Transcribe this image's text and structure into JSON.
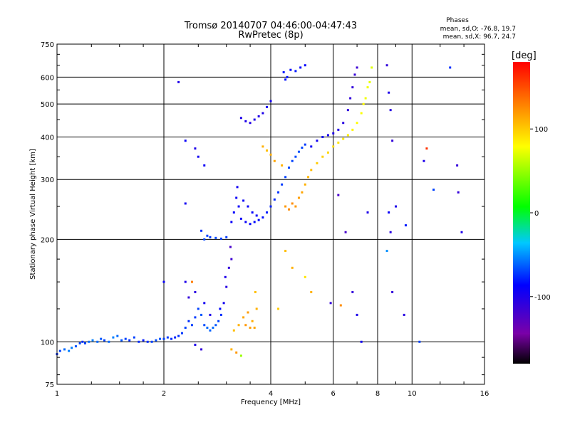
{
  "chart_data": {
    "type": "scatter",
    "title": "Tromsø 20140707 04:46:00-04:47:43",
    "subtitle": "RwPretec (8p)",
    "xlabel": "Frequency [MHz]",
    "ylabel": "Stationary phase Virtual Height [km]",
    "x_scale": "log",
    "y_scale": "log",
    "xlim": [
      1,
      16
    ],
    "ylim": [
      75,
      750
    ],
    "x_ticks": [
      1,
      2,
      4,
      6,
      8,
      10,
      16
    ],
    "y_ticks": [
      75,
      100,
      200,
      300,
      400,
      500,
      600,
      750
    ],
    "grid": true,
    "phases_box": {
      "heading": "Phases",
      "line_o": "mean, sd,O: -76.8, 19.7",
      "line_x": "mean, sd,X:  96.7, 24.7"
    },
    "colorbar": {
      "label": "[deg]",
      "range": [
        -180,
        180
      ],
      "ticks": [
        100,
        0,
        -100
      ]
    },
    "series": [
      {
        "points": [
          [
            1.0,
            92,
            -75
          ],
          [
            1.02,
            94,
            -70
          ],
          [
            1.05,
            95,
            -60
          ],
          [
            1.08,
            94,
            -55
          ],
          [
            1.1,
            96,
            -55
          ],
          [
            1.13,
            97,
            -65
          ],
          [
            1.16,
            99,
            -70
          ],
          [
            1.18,
            100,
            -75
          ],
          [
            1.2,
            99,
            -70
          ],
          [
            1.23,
            100,
            -60
          ],
          [
            1.26,
            101,
            -55
          ],
          [
            1.3,
            100,
            -60
          ],
          [
            1.33,
            102,
            -65
          ],
          [
            1.36,
            101,
            -70
          ],
          [
            1.4,
            100,
            -60
          ],
          [
            1.44,
            103,
            -55
          ],
          [
            1.48,
            104,
            -60
          ],
          [
            1.52,
            101,
            -65
          ],
          [
            1.56,
            102,
            -70
          ],
          [
            1.6,
            101,
            -75
          ],
          [
            1.65,
            103,
            -70
          ],
          [
            1.7,
            100,
            -75
          ],
          [
            1.75,
            101,
            -80
          ],
          [
            1.8,
            100,
            -75
          ],
          [
            1.85,
            100,
            -70
          ],
          [
            1.9,
            101,
            -68
          ],
          [
            1.95,
            102,
            -65
          ],
          [
            2.0,
            102,
            -70
          ],
          [
            2.05,
            103,
            -72
          ],
          [
            2.1,
            102,
            -75
          ],
          [
            2.15,
            103,
            -78
          ],
          [
            2.2,
            104,
            -75
          ],
          [
            2.25,
            106,
            -72
          ],
          [
            2.3,
            110,
            -70
          ],
          [
            2.35,
            115,
            -75
          ],
          [
            2.4,
            112,
            -70
          ],
          [
            2.45,
            118,
            -72
          ],
          [
            2.5,
            125,
            -70
          ],
          [
            2.55,
            120,
            -65
          ],
          [
            2.6,
            112,
            -68
          ],
          [
            2.65,
            110,
            -60
          ],
          [
            2.7,
            108,
            -62
          ],
          [
            2.75,
            110,
            -60
          ],
          [
            2.8,
            112,
            -65
          ],
          [
            2.85,
            115,
            -70
          ],
          [
            2.9,
            120,
            -75
          ],
          [
            2.95,
            130,
            -95
          ],
          [
            3.0,
            145,
            -105
          ],
          [
            3.05,
            165,
            -110
          ],
          [
            3.08,
            190,
            -120
          ],
          [
            3.1,
            175,
            -115
          ],
          [
            2.98,
            155,
            -100
          ],
          [
            2.88,
            125,
            -85
          ],
          [
            2.7,
            120,
            -100
          ],
          [
            2.6,
            130,
            -95
          ],
          [
            2.45,
            140,
            -105
          ],
          [
            2.35,
            135,
            -110
          ],
          [
            2.3,
            150,
            -100
          ],
          [
            3.15,
            108,
            105
          ],
          [
            3.25,
            112,
            110
          ],
          [
            3.35,
            118,
            115
          ],
          [
            3.45,
            122,
            118
          ],
          [
            3.55,
            115,
            112
          ],
          [
            3.6,
            110,
            115
          ],
          [
            3.65,
            125,
            110
          ],
          [
            3.62,
            140,
            105
          ],
          [
            3.4,
            112,
            120
          ],
          [
            3.5,
            110,
            118
          ],
          [
            2.6,
            200,
            -70
          ],
          [
            2.7,
            203,
            -72
          ],
          [
            2.8,
            202,
            -68
          ],
          [
            2.9,
            201,
            -70
          ],
          [
            3.0,
            203,
            -72
          ],
          [
            2.55,
            212,
            -75
          ],
          [
            2.65,
            205,
            -70
          ],
          [
            3.1,
            225,
            -90
          ],
          [
            3.15,
            240,
            -88
          ],
          [
            3.2,
            265,
            -92
          ],
          [
            3.22,
            285,
            -95
          ],
          [
            3.25,
            250,
            -90
          ],
          [
            3.3,
            230,
            -92
          ],
          [
            3.4,
            225,
            -90
          ],
          [
            3.5,
            222,
            -88
          ],
          [
            3.6,
            225,
            -85
          ],
          [
            3.7,
            228,
            -85
          ],
          [
            3.8,
            232,
            -83
          ],
          [
            3.9,
            240,
            -80
          ],
          [
            4.0,
            250,
            -78
          ],
          [
            4.1,
            262,
            -76
          ],
          [
            4.2,
            275,
            -74
          ],
          [
            4.3,
            290,
            -72
          ],
          [
            4.4,
            305,
            -70
          ],
          [
            4.5,
            325,
            -68
          ],
          [
            4.6,
            340,
            -70
          ],
          [
            4.7,
            350,
            -68
          ],
          [
            4.8,
            362,
            -66
          ],
          [
            4.9,
            372,
            -70
          ],
          [
            5.0,
            380,
            -72
          ],
          [
            3.35,
            260,
            -90
          ],
          [
            3.45,
            250,
            -92
          ],
          [
            3.55,
            240,
            -88
          ],
          [
            3.65,
            235,
            -90
          ],
          [
            4.4,
            250,
            120
          ],
          [
            4.5,
            245,
            125
          ],
          [
            4.6,
            255,
            125
          ],
          [
            4.7,
            250,
            120
          ],
          [
            4.8,
            265,
            118
          ],
          [
            4.9,
            275,
            115
          ],
          [
            5.0,
            290,
            110
          ],
          [
            5.1,
            305,
            108
          ],
          [
            5.2,
            320,
            106
          ],
          [
            5.4,
            335,
            100
          ],
          [
            5.6,
            350,
            98
          ],
          [
            5.8,
            360,
            95
          ],
          [
            6.0,
            375,
            92
          ],
          [
            6.2,
            385,
            90
          ],
          [
            6.4,
            395,
            88
          ],
          [
            6.6,
            405,
            85
          ],
          [
            6.8,
            420,
            83
          ],
          [
            7.0,
            440,
            80
          ],
          [
            7.2,
            470,
            78
          ],
          [
            7.4,
            520,
            75
          ],
          [
            7.6,
            580,
            72
          ],
          [
            7.7,
            640,
            70
          ],
          [
            7.5,
            560,
            75
          ],
          [
            7.3,
            500,
            80
          ],
          [
            5.6,
            400,
            -95
          ],
          [
            5.8,
            405,
            -98
          ],
          [
            6.0,
            410,
            -100
          ],
          [
            6.2,
            420,
            -102
          ],
          [
            6.4,
            440,
            -105
          ],
          [
            6.6,
            480,
            -108
          ],
          [
            6.7,
            520,
            -110
          ],
          [
            6.8,
            560,
            -110
          ],
          [
            6.9,
            610,
            -112
          ],
          [
            7.0,
            640,
            -115
          ],
          [
            5.4,
            390,
            -95
          ],
          [
            5.2,
            375,
            -92
          ],
          [
            3.4,
            445,
            -100
          ],
          [
            3.5,
            440,
            -102
          ],
          [
            3.6,
            450,
            -100
          ],
          [
            3.7,
            460,
            -102
          ],
          [
            3.8,
            470,
            -100
          ],
          [
            3.9,
            490,
            -95
          ],
          [
            4.0,
            510,
            -95
          ],
          [
            3.3,
            455,
            -100
          ],
          [
            4.35,
            620,
            -80
          ],
          [
            4.45,
            600,
            -82
          ],
          [
            4.55,
            630,
            -85
          ],
          [
            4.7,
            625,
            -80
          ],
          [
            4.85,
            640,
            -85
          ],
          [
            5.0,
            650,
            -88
          ],
          [
            4.4,
            590,
            -82
          ],
          [
            2.2,
            580,
            -100
          ],
          [
            2.3,
            390,
            -90
          ],
          [
            2.45,
            370,
            -100
          ],
          [
            2.5,
            350,
            -95
          ],
          [
            2.6,
            330,
            -92
          ],
          [
            3.8,
            375,
            110
          ],
          [
            3.9,
            365,
            105
          ],
          [
            4.0,
            355,
            112
          ],
          [
            4.1,
            340,
            115
          ],
          [
            4.3,
            330,
            110
          ],
          [
            8.5,
            650,
            -110
          ],
          [
            8.6,
            540,
            -100
          ],
          [
            8.7,
            480,
            -105
          ],
          [
            8.8,
            390,
            -110
          ],
          [
            8.6,
            240,
            -90
          ],
          [
            8.7,
            210,
            -105
          ],
          [
            9.0,
            250,
            -100
          ],
          [
            9.6,
            220,
            -80
          ],
          [
            8.5,
            185,
            -50
          ],
          [
            8.8,
            140,
            -110
          ],
          [
            9.5,
            120,
            -105
          ],
          [
            10.5,
            100,
            -70
          ],
          [
            10.8,
            340,
            -100
          ],
          [
            11.0,
            370,
            160
          ],
          [
            11.5,
            280,
            -70
          ],
          [
            12.8,
            640,
            -75
          ],
          [
            13.4,
            330,
            -110
          ],
          [
            13.5,
            275,
            -110
          ],
          [
            13.8,
            210,
            -100
          ],
          [
            6.2,
            270,
            -120
          ],
          [
            6.5,
            210,
            -120
          ],
          [
            6.8,
            140,
            -110
          ],
          [
            7.0,
            120,
            -100
          ],
          [
            7.2,
            100,
            -95
          ],
          [
            7.5,
            240,
            -100
          ],
          [
            5.9,
            130,
            -110
          ],
          [
            6.3,
            128,
            125
          ],
          [
            5.2,
            140,
            110
          ],
          [
            5.0,
            155,
            90
          ],
          [
            4.6,
            165,
            110
          ],
          [
            4.4,
            185,
            105
          ],
          [
            4.2,
            125,
            100
          ],
          [
            2.45,
            98,
            -100
          ],
          [
            2.55,
            95,
            -110
          ],
          [
            3.1,
            95,
            110
          ],
          [
            3.2,
            93,
            120
          ],
          [
            3.3,
            91,
            50
          ],
          [
            2.3,
            255,
            -95
          ],
          [
            2.0,
            150,
            -90
          ],
          [
            2.4,
            150,
            130
          ]
        ]
      }
    ]
  }
}
